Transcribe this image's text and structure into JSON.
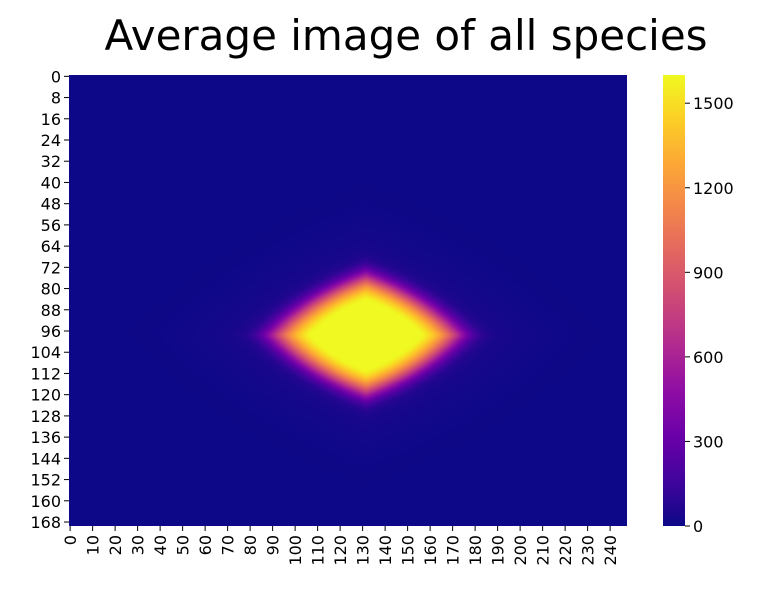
{
  "chart_data": {
    "type": "heatmap",
    "title": "Average image of all species",
    "xlabel": "",
    "ylabel": "",
    "x_range": [
      0,
      248
    ],
    "y_range": [
      0,
      170
    ],
    "x_tick_labels": [
      "0",
      "10",
      "20",
      "30",
      "40",
      "50",
      "60",
      "70",
      "80",
      "90",
      "100",
      "110",
      "120",
      "130",
      "140",
      "150",
      "160",
      "170",
      "180",
      "190",
      "200",
      "210",
      "220",
      "230",
      "240"
    ],
    "y_tick_labels": [
      "0",
      "8",
      "16",
      "24",
      "32",
      "40",
      "48",
      "56",
      "64",
      "72",
      "80",
      "88",
      "96",
      "104",
      "112",
      "120",
      "128",
      "136",
      "144",
      "152",
      "160",
      "168"
    ],
    "colormap": "plasma",
    "colorbar": {
      "min": 0,
      "max": 1600,
      "tick_labels": [
        "0",
        "300",
        "600",
        "900",
        "1200",
        "1500"
      ]
    },
    "peak": {
      "x": 132,
      "y": 98,
      "value": 1600
    },
    "grid": false
  },
  "colors": {
    "low": "#0d0887",
    "high": "#f0f921"
  }
}
